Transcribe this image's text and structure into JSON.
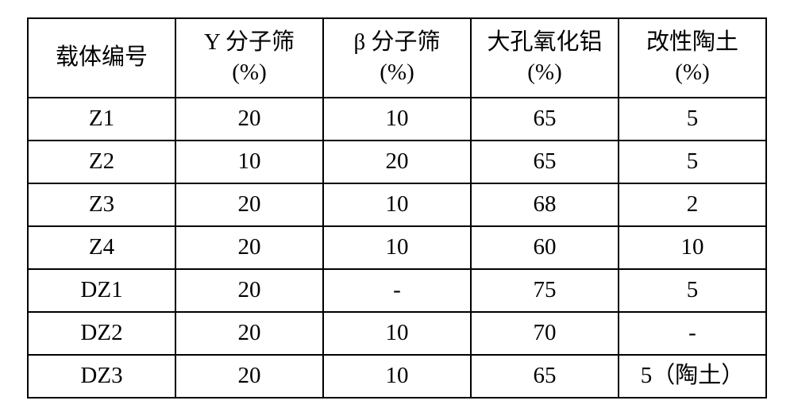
{
  "table": {
    "columns": [
      {
        "line1": "载体编号",
        "line2": ""
      },
      {
        "line1": "Y 分子筛",
        "line2": "(%)"
      },
      {
        "line1": "β 分子筛",
        "line2": "(%)"
      },
      {
        "line1": "大孔氧化铝",
        "line2": "(%)"
      },
      {
        "line1": "改性陶土",
        "line2": "(%)"
      }
    ],
    "rows": [
      [
        "Z1",
        "20",
        "10",
        "65",
        "5"
      ],
      [
        "Z2",
        "10",
        "20",
        "65",
        "5"
      ],
      [
        "Z3",
        "20",
        "10",
        "68",
        "2"
      ],
      [
        "Z4",
        "20",
        "10",
        "60",
        "10"
      ],
      [
        "DZ1",
        "20",
        "-",
        "75",
        "5"
      ],
      [
        "DZ2",
        "20",
        "10",
        "70",
        "-"
      ],
      [
        "DZ3",
        "20",
        "10",
        "65",
        "5（陶土）"
      ]
    ],
    "border_color": "#000000",
    "background_color": "#ffffff",
    "text_color": "#000000",
    "font_size_pt": 22,
    "col_widths_percent": [
      20,
      20,
      20,
      20,
      20
    ]
  }
}
